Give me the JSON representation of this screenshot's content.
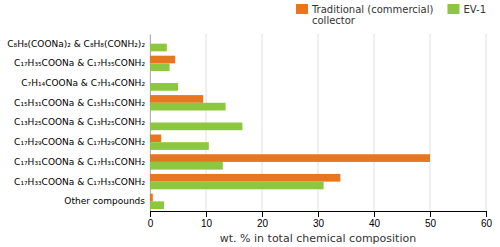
{
  "chart_data": {
    "type": "bar",
    "orientation": "horizontal",
    "categories": [
      "C₈H₈(COONa)₂ & C₈H₈(CONH₂)₂",
      "C₁₇H₃₅COONa & C₁₇H₃₅CONH₂",
      "C₇H₁₄COONa & C₇H₁₄CONH₂",
      "C₁₅H₃₁COONa & C₁₅H₃₁CONH₂",
      "C₁₃H₂₅COONa & C₁₃H₂₅CONH₂",
      "C₁₇H₂₉COONa & C₁₇H₂₉CONH₂",
      "C₁₇H₃₁COONa & C₁₇H₃₁CONH₂",
      "C₁₇H₃₃COONa & C₁₇H₃₃CONH₂",
      "Other compounds"
    ],
    "series": [
      {
        "name": "Traditional (commercial)\ncollector",
        "color": "#E8761E",
        "values": [
          0,
          4.5,
          0,
          9.5,
          0,
          2.0,
          50.0,
          34.0,
          0.5
        ]
      },
      {
        "name": "EV-1",
        "color": "#8DC63F",
        "values": [
          3.0,
          3.5,
          5.0,
          13.5,
          16.5,
          10.5,
          13.0,
          31.0,
          2.5
        ]
      }
    ],
    "xlabel": "wt. % in total chemical composition",
    "xlim": [
      0,
      60
    ],
    "xticks": [
      0,
      10,
      20,
      30,
      40,
      50,
      60
    ],
    "grid": true,
    "legend": "upper right"
  }
}
